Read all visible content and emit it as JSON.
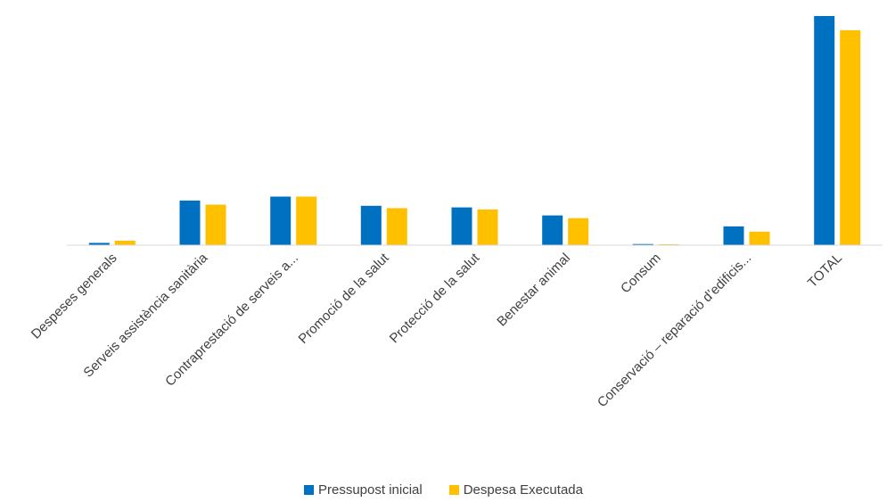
{
  "chart_data": {
    "type": "bar",
    "categories": [
      "Despeses generals",
      "Serveis assistència sanitària",
      "Contraprestació de serveis a...",
      "Promoció de la salut",
      "Protecció de la salut",
      "Benestar animal",
      "Consum",
      "Conservació – reparació d’edificis...",
      "TOTAL"
    ],
    "series": [
      {
        "name": "Pressupost inicial",
        "color": "#0070C0",
        "values": [
          1.0,
          19.5,
          21.2,
          17.2,
          16.5,
          13.0,
          0.5,
          8.2,
          100
        ]
      },
      {
        "name": "Despesa Executada",
        "color": "#FFC000",
        "values": [
          2.0,
          17.7,
          21.2,
          16.2,
          15.6,
          11.8,
          0.4,
          5.9,
          93.8
        ]
      }
    ],
    "xlabel": "",
    "ylabel": "",
    "ylim": [
      0,
      100
    ],
    "grid": false,
    "legend": "bottom"
  }
}
